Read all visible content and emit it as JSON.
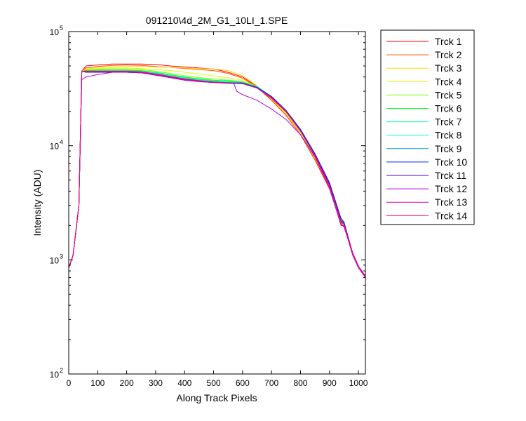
{
  "chart_data": {
    "type": "line",
    "title": "091210\\4d_2M_G1_10LI_1.SPE",
    "xlabel": "Along Track Pixels",
    "ylabel": "Intensity (ADU)",
    "xlim": [
      0,
      1024
    ],
    "ylim": [
      100,
      100000
    ],
    "yscale": "log",
    "grid": false,
    "legend_position": "outside-top-right",
    "x_ticks": [
      0,
      100,
      200,
      300,
      400,
      500,
      600,
      700,
      800,
      900,
      1000
    ],
    "y_ticks": [
      {
        "base": "10",
        "exp": "2",
        "value": 100
      },
      {
        "base": "10",
        "exp": "3",
        "value": 1000
      },
      {
        "base": "10",
        "exp": "4",
        "value": 10000
      },
      {
        "base": "10",
        "exp": "5",
        "value": 100000
      }
    ],
    "series": [
      {
        "name": "Trck 1",
        "color": "#ff0000",
        "x": [
          0,
          15,
          35,
          45,
          60,
          100,
          150,
          200,
          250,
          300,
          350,
          400,
          450,
          500,
          550,
          600,
          650,
          700,
          750,
          800,
          850,
          900,
          940,
          950,
          980,
          1000,
          1024
        ],
        "y": [
          850,
          1100,
          3000,
          45000,
          50000,
          51000,
          52000,
          52000,
          52000,
          51500,
          50000,
          49000,
          48000,
          47000,
          44000,
          40000,
          33000,
          25000,
          18500,
          12500,
          7500,
          4200,
          2050,
          1950,
          1150,
          880,
          720
        ]
      },
      {
        "name": "Trck 2",
        "color": "#ff5000",
        "x": [
          0,
          15,
          35,
          45,
          60,
          100,
          150,
          200,
          250,
          300,
          350,
          400,
          450,
          500,
          550,
          600,
          650,
          700,
          750,
          800,
          850,
          900,
          940,
          950,
          980,
          1000,
          1024
        ],
        "y": [
          850,
          1100,
          3000,
          45000,
          48000,
          49500,
          50500,
          51000,
          50500,
          49500,
          48500,
          47500,
          46500,
          45500,
          43000,
          39000,
          32500,
          25000,
          18500,
          12500,
          7600,
          4300,
          2100,
          2000,
          1150,
          880,
          720
        ]
      },
      {
        "name": "Trck 3",
        "color": "#ffdc00",
        "x": [
          0,
          15,
          35,
          45,
          60,
          100,
          150,
          200,
          250,
          300,
          350,
          400,
          450,
          500,
          550,
          600,
          650,
          700,
          750,
          800,
          850,
          900,
          940,
          950,
          980,
          1000,
          1024
        ],
        "y": [
          850,
          1100,
          3000,
          45000,
          47000,
          48500,
          49000,
          49500,
          49500,
          49000,
          48500,
          48000,
          47500,
          47000,
          45500,
          41000,
          33500,
          25500,
          19000,
          13000,
          7800,
          4400,
          2150,
          2000,
          1150,
          880,
          720
        ]
      },
      {
        "name": "Trck 4",
        "color": "#dcff00",
        "x": [
          0,
          15,
          35,
          45,
          60,
          100,
          150,
          200,
          250,
          300,
          350,
          400,
          450,
          500,
          550,
          600,
          650,
          700,
          750,
          800,
          850,
          900,
          940,
          950,
          980,
          1000,
          1024
        ],
        "y": [
          850,
          1100,
          3000,
          45000,
          46500,
          47500,
          48000,
          48000,
          47500,
          46500,
          45500,
          44000,
          42500,
          41000,
          39500,
          37500,
          33000,
          26000,
          19500,
          13200,
          8000,
          4500,
          2150,
          2050,
          1150,
          880,
          720
        ]
      },
      {
        "name": "Trck 5",
        "color": "#78ff00",
        "x": [
          0,
          15,
          35,
          45,
          60,
          100,
          150,
          200,
          250,
          300,
          350,
          400,
          450,
          500,
          550,
          600,
          650,
          700,
          750,
          800,
          850,
          900,
          940,
          950,
          980,
          1000,
          1024
        ],
        "y": [
          850,
          1100,
          3000,
          45000,
          46000,
          46500,
          47000,
          47000,
          46500,
          45000,
          43000,
          41000,
          39500,
          38500,
          37500,
          36500,
          33000,
          26500,
          19800,
          13400,
          8100,
          4550,
          2200,
          2050,
          1150,
          880,
          720
        ]
      },
      {
        "name": "Trck 6",
        "color": "#00ff28",
        "x": [
          0,
          15,
          35,
          45,
          60,
          100,
          150,
          200,
          250,
          300,
          350,
          400,
          450,
          500,
          550,
          600,
          650,
          700,
          750,
          800,
          850,
          900,
          940,
          950,
          980,
          1000,
          1024
        ],
        "y": [
          850,
          1100,
          3000,
          45000,
          45500,
          46000,
          46000,
          46000,
          45500,
          44000,
          42000,
          40000,
          38500,
          37500,
          37000,
          36000,
          33000,
          26800,
          20000,
          13600,
          8200,
          4600,
          2200,
          2050,
          1150,
          880,
          720
        ]
      },
      {
        "name": "Trck 7",
        "color": "#00ff96",
        "x": [
          0,
          15,
          35,
          45,
          60,
          100,
          150,
          200,
          250,
          300,
          350,
          400,
          450,
          500,
          550,
          600,
          650,
          700,
          750,
          800,
          850,
          900,
          940,
          950,
          980,
          1000,
          1024
        ],
        "y": [
          850,
          1100,
          3000,
          45000,
          45000,
          45500,
          45500,
          45500,
          45000,
          43500,
          41500,
          39500,
          38000,
          37000,
          36500,
          36000,
          33000,
          27000,
          20200,
          13700,
          8300,
          4650,
          2250,
          2100,
          1150,
          880,
          720
        ]
      },
      {
        "name": "Trck 8",
        "color": "#00ffdc",
        "x": [
          0,
          15,
          35,
          45,
          60,
          100,
          150,
          200,
          250,
          300,
          350,
          400,
          450,
          500,
          550,
          600,
          650,
          700,
          750,
          800,
          850,
          900,
          940,
          950,
          980,
          1000,
          1024
        ],
        "y": [
          850,
          1100,
          3000,
          45000,
          44500,
          45000,
          45000,
          45000,
          44500,
          43000,
          41000,
          39000,
          37500,
          36500,
          36000,
          35500,
          32800,
          27000,
          20300,
          13800,
          8400,
          4700,
          2250,
          2100,
          1150,
          880,
          720
        ]
      },
      {
        "name": "Trck 9",
        "color": "#0096dc",
        "x": [
          0,
          15,
          35,
          45,
          60,
          100,
          150,
          200,
          250,
          300,
          350,
          400,
          450,
          500,
          550,
          600,
          650,
          700,
          750,
          800,
          850,
          900,
          940,
          950,
          980,
          1000,
          1024
        ],
        "y": [
          850,
          1100,
          3000,
          45000,
          44500,
          44500,
          44500,
          44500,
          44000,
          42500,
          40500,
          38500,
          37200,
          36200,
          35800,
          35500,
          32500,
          27000,
          20400,
          13900,
          8500,
          4750,
          2300,
          2150,
          1150,
          880,
          720
        ]
      },
      {
        "name": "Trck 10",
        "color": "#0028ff",
        "x": [
          0,
          15,
          35,
          45,
          60,
          100,
          150,
          200,
          250,
          300,
          350,
          400,
          450,
          500,
          550,
          600,
          650,
          700,
          750,
          800,
          850,
          900,
          940,
          950,
          980,
          1000,
          1024
        ],
        "y": [
          850,
          1100,
          3000,
          45000,
          44000,
          44000,
          44000,
          44000,
          43500,
          42000,
          40000,
          38000,
          37000,
          36000,
          35500,
          35500,
          32500,
          27000,
          20400,
          13900,
          8500,
          4750,
          2300,
          2150,
          1150,
          880,
          720
        ]
      },
      {
        "name": "Trck 11",
        "color": "#5000c8",
        "x": [
          0,
          15,
          35,
          45,
          60,
          100,
          150,
          200,
          250,
          300,
          350,
          400,
          450,
          500,
          550,
          600,
          650,
          700,
          750,
          800,
          850,
          900,
          940,
          950,
          980,
          1000,
          1024
        ],
        "y": [
          850,
          1100,
          3000,
          45000,
          44000,
          44000,
          44000,
          44000,
          43500,
          41500,
          39500,
          37500,
          36500,
          35800,
          35200,
          35000,
          32000,
          26500,
          20000,
          13600,
          8300,
          4600,
          2200,
          2100,
          1150,
          880,
          720
        ]
      },
      {
        "name": "Trck 12",
        "color": "#b400dc",
        "x": [
          0,
          15,
          35,
          45,
          60,
          100,
          150,
          200,
          250,
          300,
          350,
          400,
          450,
          500,
          550,
          570,
          580,
          600,
          650,
          700,
          750,
          800,
          850,
          900,
          940,
          950,
          980,
          1000,
          1024
        ],
        "y": [
          850,
          1100,
          3000,
          38000,
          40000,
          42000,
          44000,
          44000,
          43500,
          41500,
          39500,
          37500,
          36500,
          35800,
          35500,
          35200,
          30000,
          28000,
          25000,
          21000,
          17000,
          12500,
          8000,
          4300,
          2000,
          2000,
          1100,
          850,
          700
        ]
      },
      {
        "name": "Trck 13",
        "color": "#dc00b4",
        "x": [
          0,
          15,
          35,
          45,
          60,
          100,
          150,
          200,
          250,
          300,
          350,
          400,
          450,
          500,
          550,
          600,
          650,
          700,
          750,
          800,
          850,
          900,
          940,
          950,
          980,
          1000,
          1024
        ],
        "y": [
          850,
          1100,
          3000,
          45000,
          44500,
          44500,
          44500,
          44500,
          44000,
          42000,
          40000,
          38000,
          37000,
          36000,
          35500,
          35000,
          32000,
          26500,
          20000,
          13500,
          8200,
          4500,
          2150,
          2050,
          1150,
          880,
          720
        ]
      },
      {
        "name": "Trck 14",
        "color": "#ff0064",
        "x": [
          0,
          15,
          35,
          45,
          60,
          100,
          150,
          200,
          250,
          300,
          350,
          400,
          450,
          500,
          550,
          600,
          650,
          700,
          750,
          800,
          850,
          900,
          940,
          950,
          980,
          1000,
          1024
        ],
        "y": [
          850,
          1100,
          3000,
          45000,
          45000,
          45000,
          45000,
          45000,
          44500,
          42500,
          40500,
          38500,
          37200,
          36200,
          35500,
          35000,
          32000,
          26000,
          19800,
          13400,
          8200,
          4500,
          2150,
          2050,
          1150,
          880,
          700
        ]
      }
    ]
  }
}
